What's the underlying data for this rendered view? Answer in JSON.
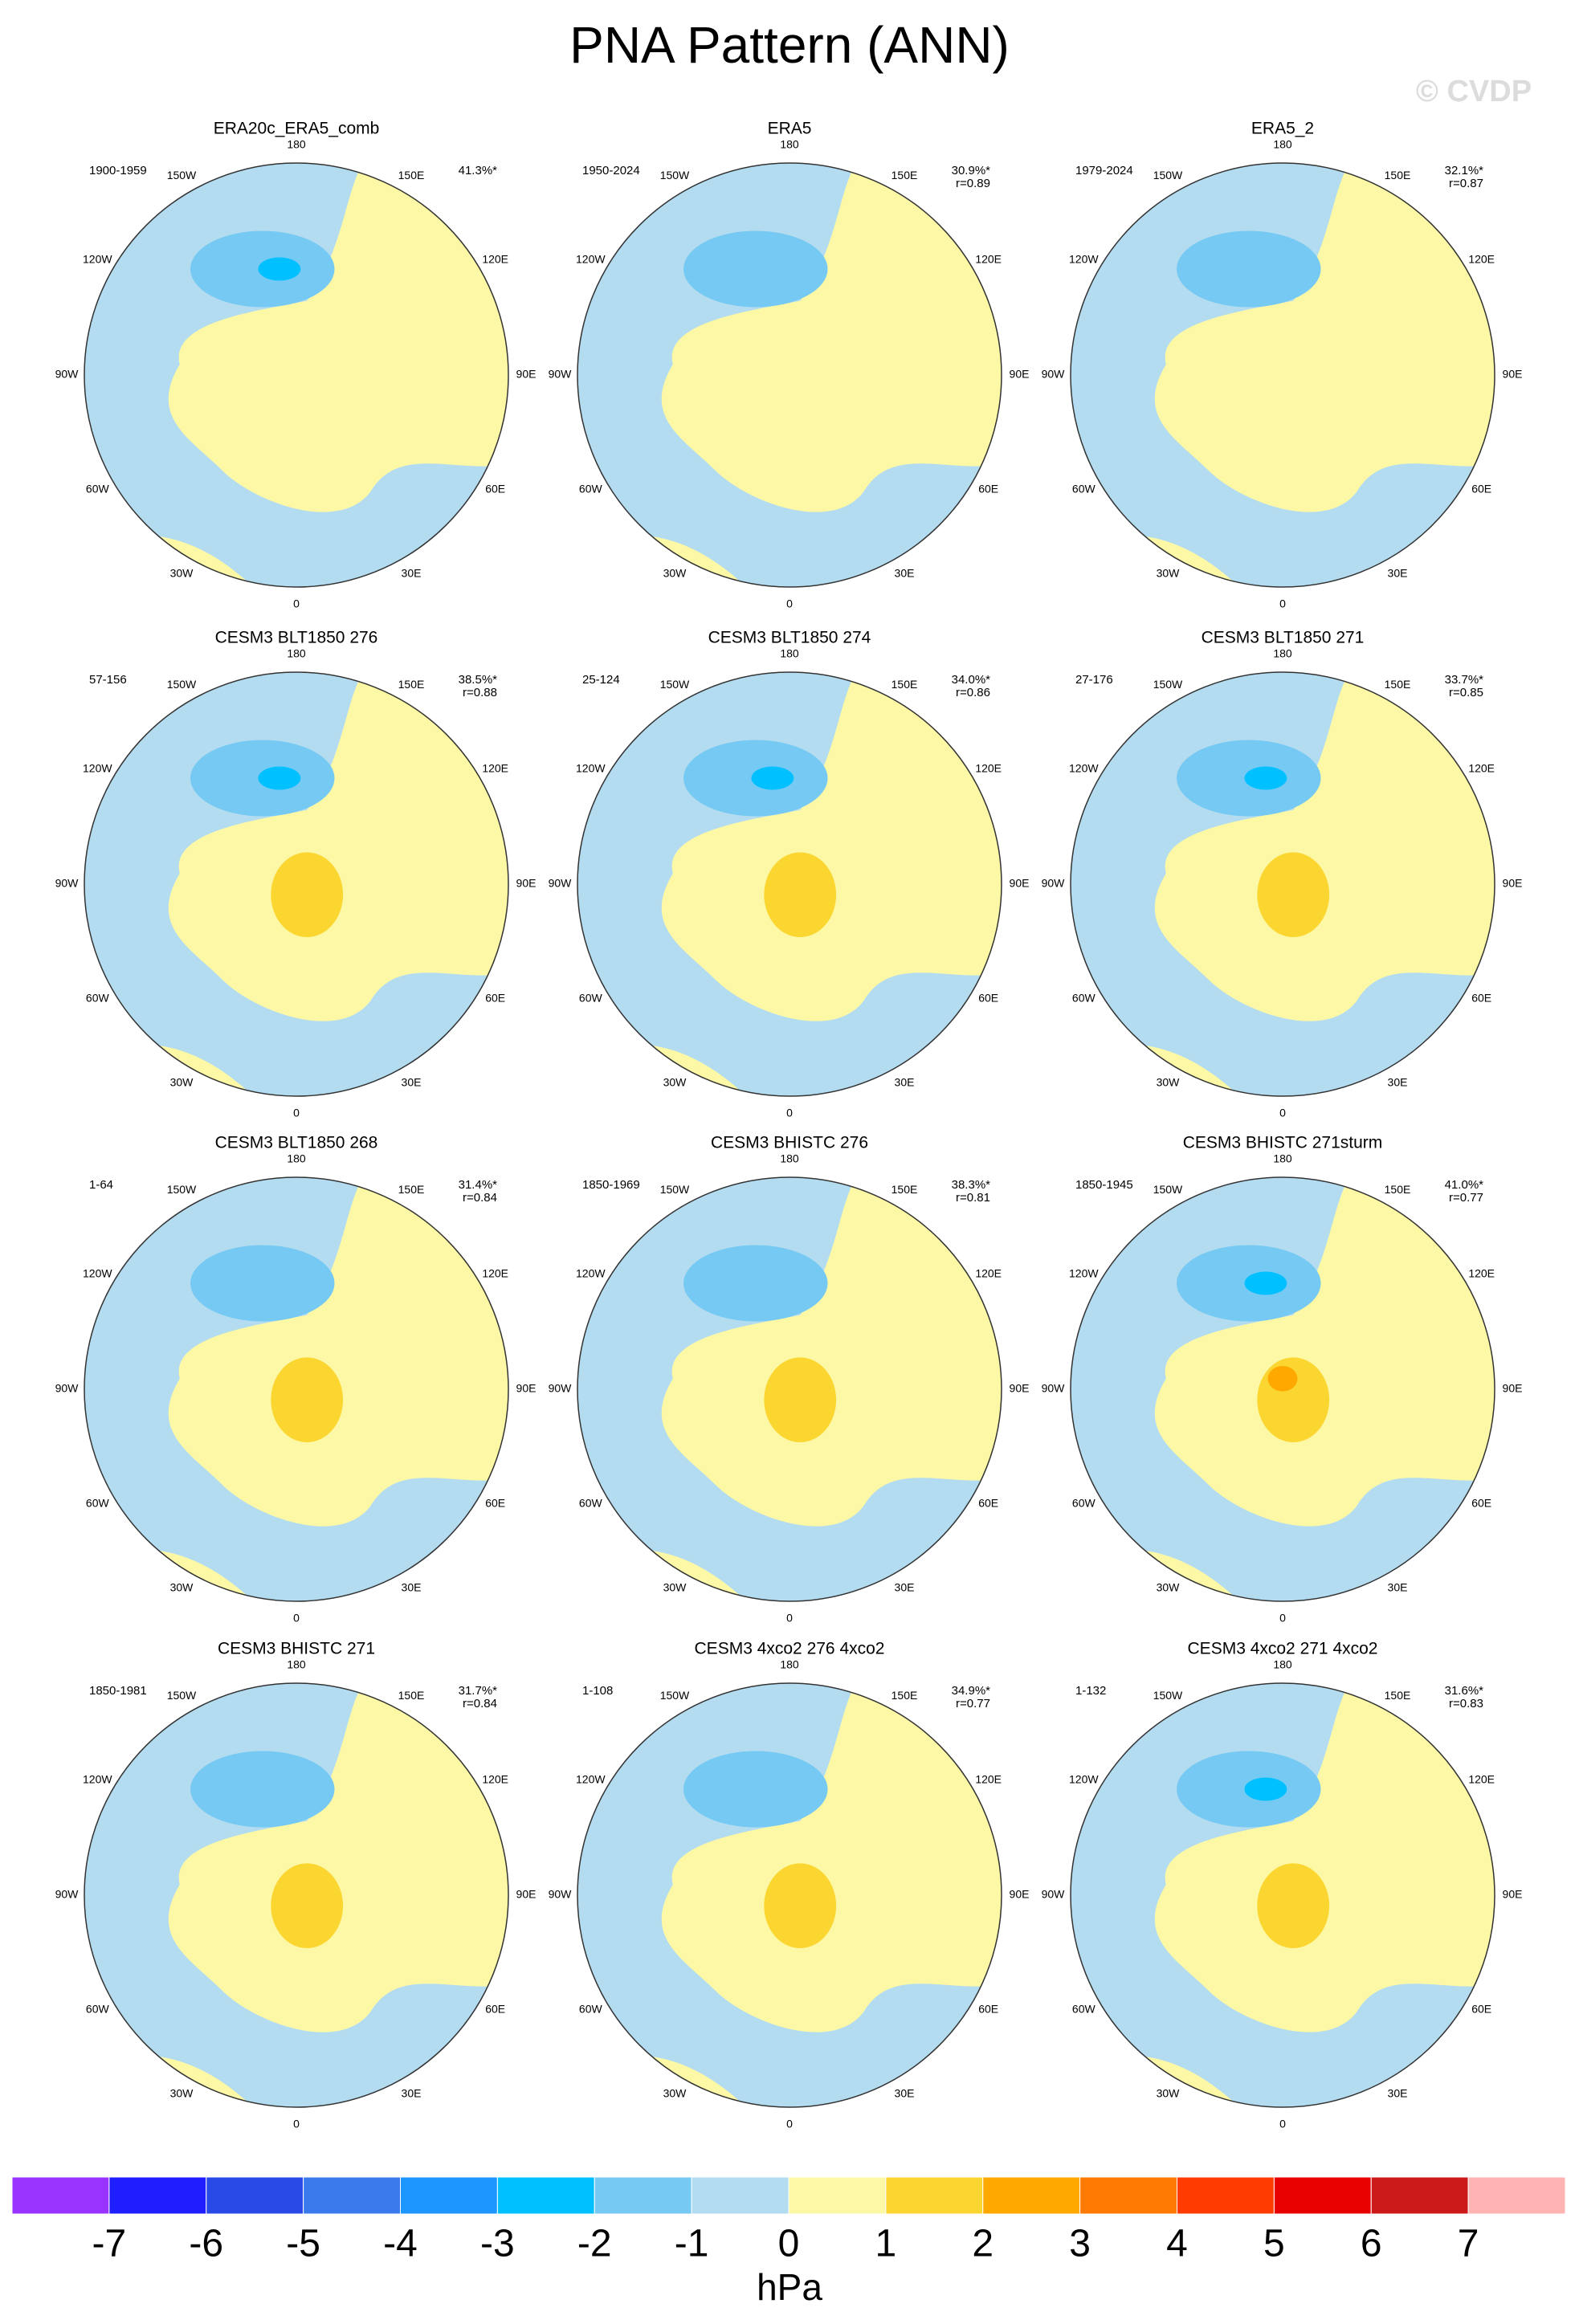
{
  "title": "PNA Pattern (ANN)",
  "watermark": "© CVDP",
  "lon_labels": [
    "180",
    "150E",
    "120E",
    "90E",
    "60E",
    "30E",
    "0",
    "30W",
    "60W",
    "90W",
    "120W",
    "150W"
  ],
  "panels": [
    {
      "title": "ERA20c_ERA5_comb",
      "period": "1900-1959",
      "pct": "41.3%*"
    },
    {
      "title": "ERA5",
      "period": "1950-2024",
      "pct": "30.9%*",
      "r": "r=0.89"
    },
    {
      "title": "ERA5_2",
      "period": "1979-2024",
      "pct": "32.1%*",
      "r": "r=0.87"
    },
    {
      "title": "CESM3 BLT1850 276",
      "period": "57-156",
      "pct": "38.5%*",
      "r": "r=0.88"
    },
    {
      "title": "CESM3 BLT1850 274",
      "period": "25-124",
      "pct": "34.0%*",
      "r": "r=0.86"
    },
    {
      "title": "CESM3 BLT1850 271",
      "period": "27-176",
      "pct": "33.7%*",
      "r": "r=0.85"
    },
    {
      "title": "CESM3 BLT1850 268",
      "period": "1-64",
      "pct": "31.4%*",
      "r": "r=0.84"
    },
    {
      "title": "CESM3 BHISTC 276",
      "period": "1850-1969",
      "pct": "38.3%*",
      "r": "r=0.81"
    },
    {
      "title": "CESM3 BHISTC 271sturm",
      "period": "1850-1945",
      "pct": "41.0%*",
      "r": "r=0.77"
    },
    {
      "title": "CESM3 BHISTC 271",
      "period": "1850-1981",
      "pct": "31.7%*",
      "r": "r=0.84"
    },
    {
      "title": "CESM3 4xco2 276 4xco2",
      "period": "1-108",
      "pct": "34.9%*",
      "r": "r=0.77"
    },
    {
      "title": "CESM3 4xco2 271 4xco2",
      "period": "1-132",
      "pct": "31.6%*",
      "r": "r=0.83"
    }
  ],
  "colorbar": {
    "colors": [
      "#9933ff",
      "#1e1eff",
      "#2a4ae8",
      "#3a7aec",
      "#1e96ff",
      "#00c0ff",
      "#75c9f2",
      "#b4dcf0",
      "#fcf8a6",
      "#fcd630",
      "#ffa800",
      "#ff7a00",
      "#ff3c00",
      "#e80000",
      "#cc1a1a",
      "#ffb4b4"
    ],
    "ticks": [
      -7,
      -6,
      -5,
      -4,
      -3,
      -2,
      -1,
      0,
      1,
      2,
      3,
      4,
      5,
      6,
      7
    ],
    "label": "hPa"
  }
}
